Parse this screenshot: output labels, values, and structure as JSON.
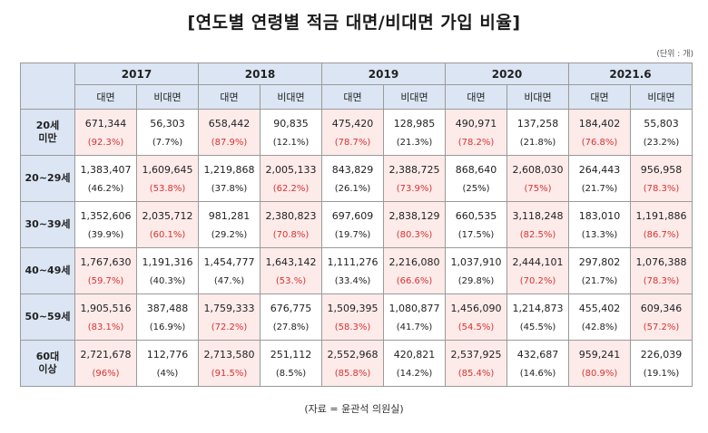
{
  "title": "[연도별 연령별 적금 대면/비대면 가입 비율]",
  "unit": "(단위 : 개)",
  "years": [
    "2017",
    "2018",
    "2019",
    "2020",
    "2021.6"
  ],
  "sub_headers": [
    "대면",
    "비대면"
  ],
  "rows": [
    {
      "label": "20세\n미만",
      "cells": [
        {
          "face": "671,344",
          "face_pct": "(92.3%)",
          "non": "56,303",
          "non_pct": "(7.7%)",
          "hi": "face"
        },
        {
          "face": "658,442",
          "face_pct": "(87.9%)",
          "non": "90,835",
          "non_pct": "(12.1%)",
          "hi": "face"
        },
        {
          "face": "475,420",
          "face_pct": "(78.7%)",
          "non": "128,985",
          "non_pct": "(21.3%)",
          "hi": "face"
        },
        {
          "face": "490,971",
          "face_pct": "(78.2%)",
          "non": "137,258",
          "non_pct": "(21.8%)",
          "hi": "face"
        },
        {
          "face": "184,402",
          "face_pct": "(76.8%)",
          "non": "55,803",
          "non_pct": "(23.2%)",
          "hi": "face"
        }
      ]
    },
    {
      "label": "20~29세",
      "cells": [
        {
          "face": "1,383,407",
          "face_pct": "(46.2%)",
          "non": "1,609,645",
          "non_pct": "(53.8%)",
          "hi": "non"
        },
        {
          "face": "1,219,868",
          "face_pct": "(37.8%)",
          "non": "2,005,133",
          "non_pct": "(62.2%)",
          "hi": "non"
        },
        {
          "face": "843,829",
          "face_pct": "(26.1%)",
          "non": "2,388,725",
          "non_pct": "(73.9%)",
          "hi": "non"
        },
        {
          "face": "868,640",
          "face_pct": "(25%)",
          "non": "2,608,030",
          "non_pct": "(75%)",
          "hi": "non"
        },
        {
          "face": "264,443",
          "face_pct": "(21.7%)",
          "non": "956,958",
          "non_pct": "(78.3%)",
          "hi": "non"
        }
      ]
    },
    {
      "label": "30~39세",
      "cells": [
        {
          "face": "1,352,606",
          "face_pct": "(39.9%)",
          "non": "2,035,712",
          "non_pct": "(60.1%)",
          "hi": "non"
        },
        {
          "face": "981,281",
          "face_pct": "(29.2%)",
          "non": "2,380,823",
          "non_pct": "(70.8%)",
          "hi": "non"
        },
        {
          "face": "697,609",
          "face_pct": "(19.7%)",
          "non": "2,838,129",
          "non_pct": "(80.3%)",
          "hi": "non"
        },
        {
          "face": "660,535",
          "face_pct": "(17.5%)",
          "non": "3,118,248",
          "non_pct": "(82.5%)",
          "hi": "non"
        },
        {
          "face": "183,010",
          "face_pct": "(13.3%)",
          "non": "1,191,886",
          "non_pct": "(86.7%)",
          "hi": "non"
        }
      ]
    },
    {
      "label": "40~49세",
      "cells": [
        {
          "face": "1,767,630",
          "face_pct": "(59.7%)",
          "non": "1,191,316",
          "non_pct": "(40.3%)",
          "hi": "face"
        },
        {
          "face": "1,454,777",
          "face_pct": "(47.%)",
          "non": "1,643,142",
          "non_pct": "(53.%)",
          "hi": "non"
        },
        {
          "face": "1,111,276",
          "face_pct": "(33.4%)",
          "non": "2,216,080",
          "non_pct": "(66.6%)",
          "hi": "non"
        },
        {
          "face": "1,037,910",
          "face_pct": "(29.8%)",
          "non": "2,444,101",
          "non_pct": "(70.2%)",
          "hi": "non"
        },
        {
          "face": "297,802",
          "face_pct": "(21.7%)",
          "non": "1,076,388",
          "non_pct": "(78.3%)",
          "hi": "non"
        }
      ]
    },
    {
      "label": "50~59세",
      "cells": [
        {
          "face": "1,905,516",
          "face_pct": "(83.1%)",
          "non": "387,488",
          "non_pct": "(16.9%)",
          "hi": "face"
        },
        {
          "face": "1,759,333",
          "face_pct": "(72.2%)",
          "non": "676,775",
          "non_pct": "(27.8%)",
          "hi": "face"
        },
        {
          "face": "1,509,395",
          "face_pct": "(58.3%)",
          "non": "1,080,877",
          "non_pct": "(41.7%)",
          "hi": "face"
        },
        {
          "face": "1,456,090",
          "face_pct": "(54.5%)",
          "non": "1,214,873",
          "non_pct": "(45.5%)",
          "hi": "face"
        },
        {
          "face": "455,402",
          "face_pct": "(42.8%)",
          "non": "609,346",
          "non_pct": "(57.2%)",
          "hi": "non"
        }
      ]
    },
    {
      "label": "60대\n이상",
      "cells": [
        {
          "face": "2,721,678",
          "face_pct": "(96%)",
          "non": "112,776",
          "non_pct": "(4%)",
          "hi": "face"
        },
        {
          "face": "2,713,580",
          "face_pct": "(91.5%)",
          "non": "251,112",
          "non_pct": "(8.5%)",
          "hi": "face"
        },
        {
          "face": "2,552,968",
          "face_pct": "(85.8%)",
          "non": "420,821",
          "non_pct": "(14.2%)",
          "hi": "face"
        },
        {
          "face": "2,537,925",
          "face_pct": "(85.4%)",
          "non": "432,687",
          "non_pct": "(14.6%)",
          "hi": "face"
        },
        {
          "face": "959,241",
          "face_pct": "(80.9%)",
          "non": "226,039",
          "non_pct": "(19.1%)",
          "hi": "face"
        }
      ]
    }
  ],
  "source": "(자료 = 윤관석 의원실)",
  "colors": {
    "header_bg": "#dbe5f3",
    "highlight_bg": "#fdebea",
    "highlight_text": "#d8322f"
  }
}
